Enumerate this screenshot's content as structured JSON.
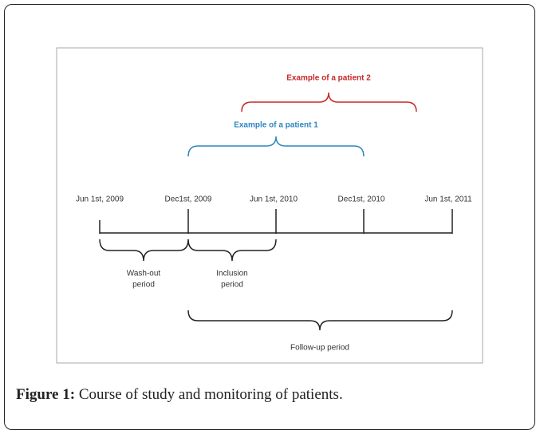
{
  "figure": {
    "timeline": {
      "ticks": [
        "Jun 1st, 2009",
        "Dec1st, 2009",
        "Jun 1st, 2010",
        "Dec1st, 2010",
        "Jun 1st, 2011"
      ]
    },
    "patients": [
      {
        "label": "Example  of a patient 1"
      },
      {
        "label": "Example  of a patient 2"
      }
    ],
    "periods": [
      {
        "lines": [
          "Wash-out",
          "period"
        ]
      },
      {
        "lines": [
          "Inclusion",
          "period"
        ]
      },
      {
        "lines": [
          "Follow-up period"
        ]
      }
    ],
    "caption": {
      "label": "Figure 1:",
      "text": "Course of study and monitoring of patients."
    }
  }
}
